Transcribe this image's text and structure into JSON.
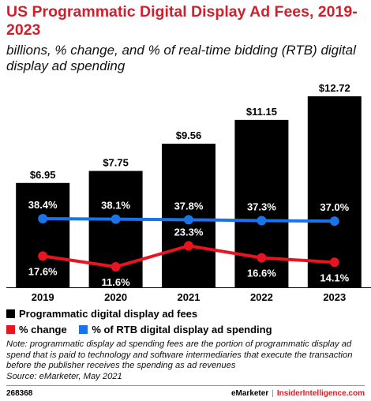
{
  "title": "US Programmatic Digital Display Ad Fees, 2019-2023",
  "subtitle": "billions, % change, and % of real-time bidding (RTB) digital display ad spending",
  "chart_data": {
    "type": "bar",
    "categories": [
      "2019",
      "2020",
      "2021",
      "2022",
      "2023"
    ],
    "series": [
      {
        "name": "Programmatic digital display ad fees",
        "type": "bar",
        "color": "#000000",
        "values": [
          6.95,
          7.75,
          9.56,
          11.15,
          12.72
        ],
        "labels": [
          "$6.95",
          "$7.75",
          "$9.56",
          "$11.15",
          "$12.72"
        ]
      },
      {
        "name": "% change",
        "type": "line",
        "color": "#e8141f",
        "values": [
          17.6,
          11.6,
          23.3,
          16.6,
          14.1
        ],
        "labels": [
          "17.6%",
          "11.6%",
          "23.3%",
          "16.6%",
          "14.1%"
        ]
      },
      {
        "name": "% of RTB digital display ad spending",
        "type": "line",
        "color": "#1a73e8",
        "values": [
          38.4,
          38.1,
          37.8,
          37.3,
          37.0
        ],
        "labels": [
          "38.4%",
          "38.1%",
          "37.8%",
          "37.3%",
          "37.0%"
        ]
      }
    ],
    "bar_ylim": [
      0,
      13
    ],
    "grid": false,
    "legend": "bottom"
  },
  "note": "Note: programmatic display ad spending fees are the portion of programmatic display ad spend that is paid to technology and software intermediaries that execute the transaction before the publisher receives the spending as ad revenues",
  "source": "Source: eMarketer, May 2021",
  "footer": {
    "chart_id": "268368",
    "brand1": "eMarketer",
    "separator": "|",
    "brand2": "InsiderIntelligence.com"
  }
}
